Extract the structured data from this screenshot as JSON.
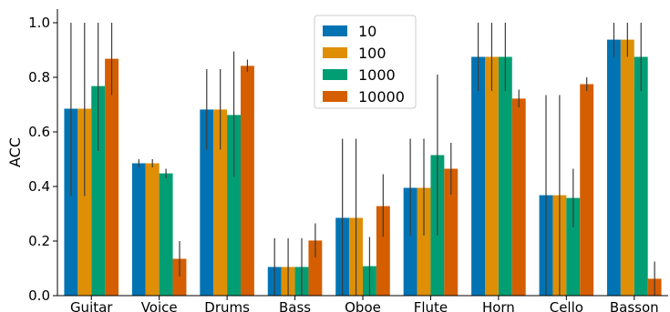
{
  "chart_data": {
    "type": "bar",
    "ylabel": "ACC",
    "xlabel": "",
    "ylim": [
      0,
      1.05
    ],
    "yticks": [
      0.0,
      0.2,
      0.4,
      0.6,
      0.8,
      1.0
    ],
    "ytick_labels": [
      "0.0",
      "0.2",
      "0.4",
      "0.6",
      "0.8",
      "1.0"
    ],
    "grid": false,
    "legend_position": "top-center",
    "categories": [
      "Guitar",
      "Voice",
      "Drums",
      "Bass",
      "Oboe",
      "Flute",
      "Horn",
      "Cello",
      "Basson"
    ],
    "series": [
      {
        "name": "10",
        "color": "#0173b2",
        "values": [
          0.685,
          0.485,
          0.682,
          0.105,
          0.285,
          0.395,
          0.875,
          0.368,
          0.938
        ],
        "err_low": [
          0.365,
          0.47,
          0.535,
          0.0,
          0.0,
          0.22,
          0.75,
          0.0,
          0.875
        ],
        "err_high": [
          1.0,
          0.5,
          0.83,
          0.21,
          0.575,
          0.575,
          1.0,
          0.735,
          1.0
        ]
      },
      {
        "name": "100",
        "color": "#de8f05",
        "values": [
          0.685,
          0.485,
          0.682,
          0.105,
          0.285,
          0.395,
          0.875,
          0.368,
          0.938
        ],
        "err_low": [
          0.365,
          0.47,
          0.535,
          0.0,
          0.0,
          0.22,
          0.75,
          0.0,
          0.875
        ],
        "err_high": [
          1.0,
          0.5,
          0.83,
          0.21,
          0.575,
          0.575,
          1.0,
          0.735,
          1.0
        ]
      },
      {
        "name": "1000",
        "color": "#029e73",
        "values": [
          0.768,
          0.448,
          0.662,
          0.105,
          0.108,
          0.515,
          0.875,
          0.358,
          0.875
        ],
        "err_low": [
          0.53,
          0.43,
          0.435,
          0.0,
          0.0,
          0.22,
          0.75,
          0.25,
          0.75
        ],
        "err_high": [
          1.0,
          0.465,
          0.895,
          0.21,
          0.215,
          0.81,
          1.0,
          0.465,
          1.0
        ]
      },
      {
        "name": "10000",
        "color": "#d55e00",
        "values": [
          0.868,
          0.135,
          0.842,
          0.202,
          0.328,
          0.465,
          0.722,
          0.775,
          0.062
        ],
        "err_low": [
          0.735,
          0.07,
          0.82,
          0.14,
          0.215,
          0.37,
          0.69,
          0.75,
          0.0
        ],
        "err_high": [
          1.0,
          0.2,
          0.865,
          0.265,
          0.445,
          0.56,
          0.755,
          0.8,
          0.125
        ]
      }
    ]
  }
}
